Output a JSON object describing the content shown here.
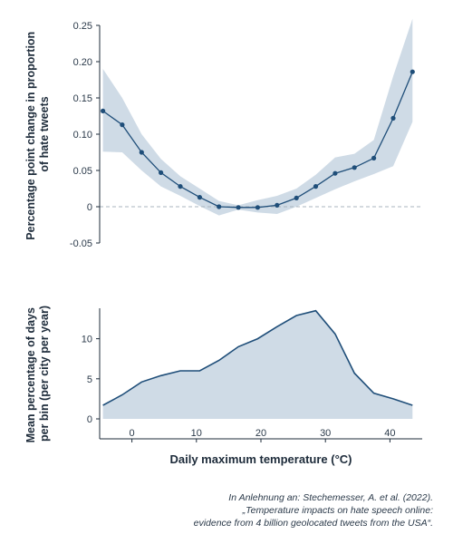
{
  "chart_data": [
    {
      "type": "line",
      "ylabel_lines": [
        "Percentage point change in proportion",
        "of hate tweets"
      ],
      "ylim": [
        -0.05,
        0.25
      ],
      "yticks": [
        -0.05,
        0,
        0.05,
        0.1,
        0.15,
        0.2,
        0.25
      ],
      "ytick_labels": [
        "-0.05",
        "0",
        "0.05",
        "0.10",
        "0.15",
        "0.20",
        "0.25"
      ],
      "xlim": [
        -5,
        45
      ],
      "reference_line": 0,
      "series": [
        {
          "x": [
            -4.5,
            -1.5,
            1.5,
            4.5,
            7.5,
            10.5,
            13.5,
            16.5,
            19.5,
            22.5,
            25.5,
            28.5,
            31.5,
            34.5,
            37.5,
            40.5,
            43.5
          ],
          "y": [
            0.132,
            0.113,
            0.075,
            0.047,
            0.028,
            0.013,
            0.0,
            -0.001,
            -0.001,
            0.002,
            0.012,
            0.028,
            0.046,
            0.054,
            0.067,
            0.122,
            0.186
          ],
          "lower": [
            0.076,
            0.075,
            0.05,
            0.028,
            0.015,
            0.001,
            -0.012,
            -0.004,
            -0.008,
            -0.01,
            0.0,
            0.012,
            0.024,
            0.035,
            0.045,
            0.056,
            0.117
          ],
          "upper": [
            0.19,
            0.15,
            0.1,
            0.066,
            0.042,
            0.025,
            0.008,
            0.002,
            0.009,
            0.015,
            0.025,
            0.044,
            0.068,
            0.073,
            0.092,
            0.18,
            0.259
          ]
        }
      ],
      "colors": {
        "line": "#1f4e79",
        "band": "#cfdbe6",
        "reference": "#a8b4bf"
      }
    },
    {
      "type": "area",
      "ylabel_lines": [
        "Mean percentage of days",
        "per bin (per city per year)"
      ],
      "xlabel": "Daily maximum temperature (°C)",
      "ylim": [
        0,
        13.8
      ],
      "yticks": [
        0,
        5,
        10
      ],
      "ytick_labels": [
        "0",
        "5",
        "10"
      ],
      "xlim": [
        -5,
        45
      ],
      "xticks": [
        0,
        10,
        20,
        30,
        40
      ],
      "xtick_labels": [
        "0",
        "10",
        "20",
        "30",
        "40"
      ],
      "series": [
        {
          "x": [
            -4.5,
            -1.5,
            1.5,
            4.5,
            7.5,
            10.5,
            13.5,
            16.5,
            19.5,
            22.5,
            25.5,
            28.5,
            31.5,
            34.5,
            37.5,
            40.5,
            43.5
          ],
          "y": [
            1.7,
            3.0,
            4.6,
            5.4,
            6.0,
            6.0,
            7.3,
            9.0,
            10.0,
            11.5,
            12.9,
            13.5,
            10.6,
            5.7,
            3.2,
            2.5,
            1.7
          ]
        }
      ],
      "colors": {
        "line": "#1f4e79",
        "fill": "#cfdbe6"
      }
    }
  ],
  "source_lines": [
    "In Anlehnung an: Stechemesser, A. et al. (2022).",
    "„Temperature impacts on hate speech online:",
    "evidence from 4 billion geolocated tweets from the USA“."
  ]
}
